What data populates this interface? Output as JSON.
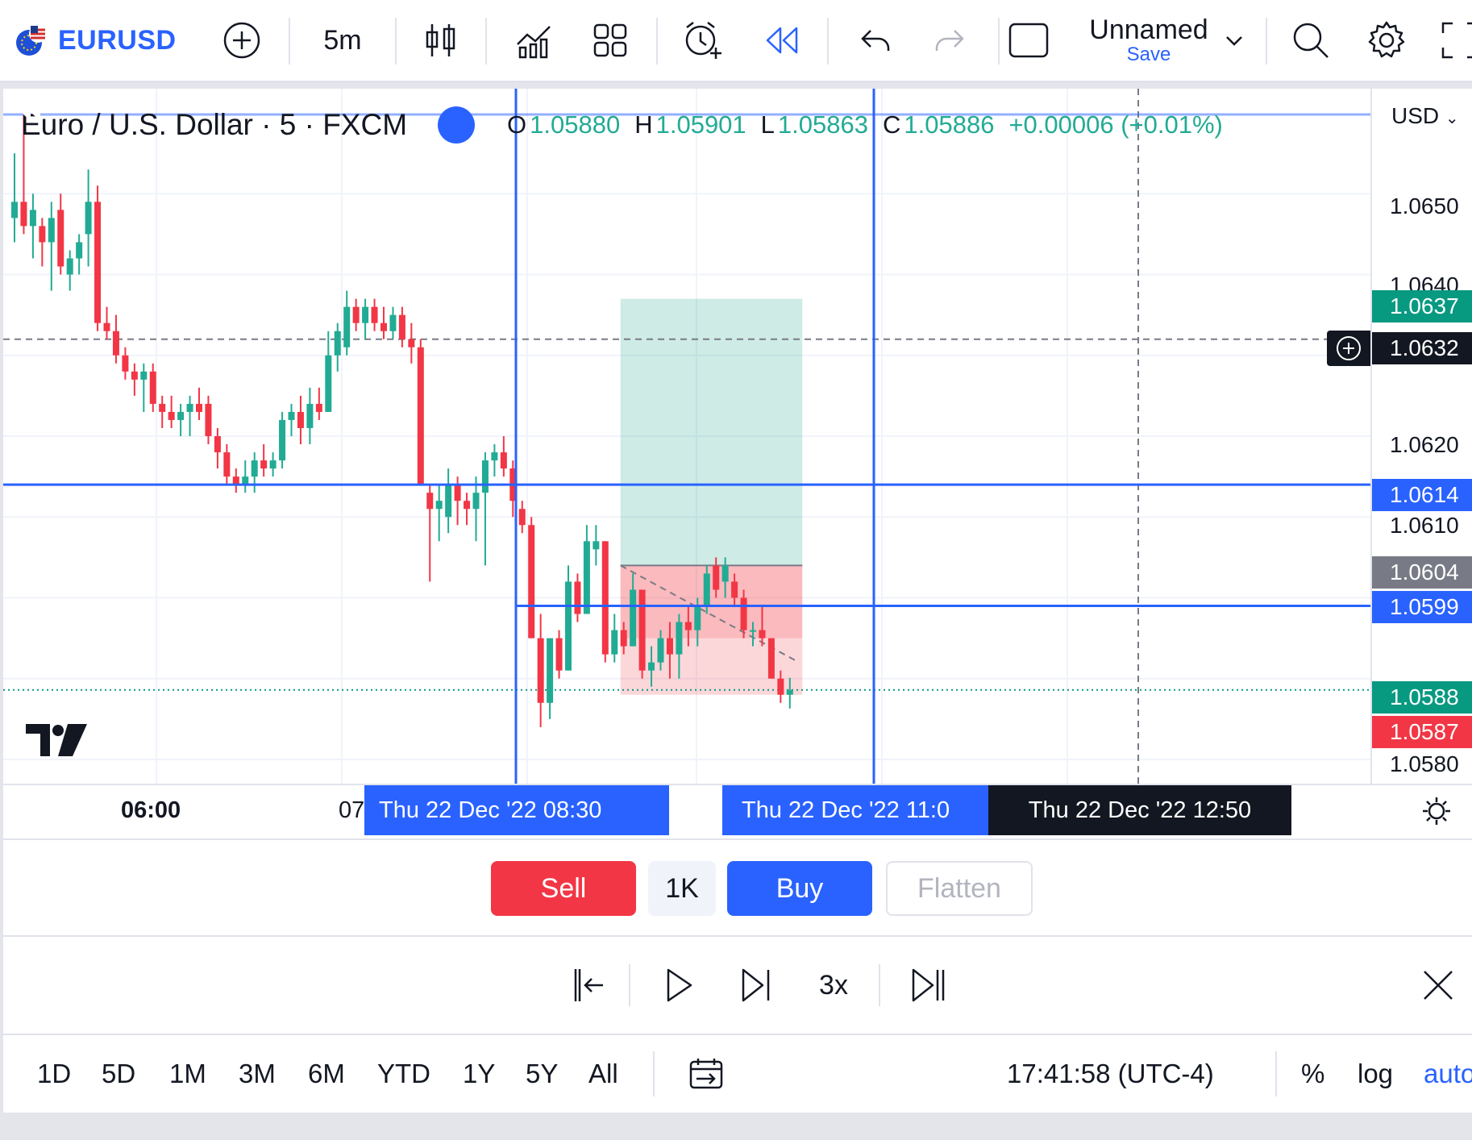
{
  "toolbar": {
    "symbol": "EURUSD",
    "interval": "5m",
    "layout_name": "Unnamed",
    "layout_save": "Save",
    "icons": [
      "plus-circle-icon",
      "candles-icon",
      "indicators-icon",
      "layout-grid-icon",
      "alert-icon",
      "replay-icon",
      "undo-icon",
      "redo-icon",
      "fullscreen-square-icon",
      "search-icon",
      "gear-icon",
      "expand-icon"
    ]
  },
  "legend": {
    "title": "Euro / U.S. Dollar · 5 · FXCM",
    "open_label": "O",
    "open": "1.05880",
    "high_label": "H",
    "high": "1.05901",
    "low_label": "L",
    "low": "1.05863",
    "close_label": "C",
    "close": "1.05886",
    "change": "+0.00006 (+0.01%)"
  },
  "price_axis": {
    "currency": "USD",
    "ticks": [
      "1.0650",
      "1.0640",
      "1.0620",
      "1.0610",
      "1.0580"
    ],
    "labels": {
      "target": "1.0637",
      "crosshair": "1.0632",
      "hline_upper": "1.0614",
      "entry": "1.0604",
      "hline_lower": "1.0599",
      "ask": "1.0588",
      "bid": "1.0587"
    }
  },
  "time_axis": {
    "tick_1": "06:00",
    "tick_2": "07",
    "label_1": "Thu 22 Dec '22   08:30",
    "label_2": "Thu 22 Dec '22   11:0",
    "label_3": "Thu 22 Dec '22   12:50"
  },
  "trade": {
    "sell": "Sell",
    "quantity": "1K",
    "buy": "Buy",
    "flatten": "Flatten"
  },
  "replay": {
    "speed": "3x"
  },
  "bottom": {
    "ranges": [
      "1D",
      "5D",
      "1M",
      "3M",
      "6M",
      "YTD",
      "1Y",
      "5Y",
      "All"
    ],
    "clock": "17:41:58 (UTC-4)",
    "percent": "%",
    "log": "log",
    "auto": "auto"
  },
  "colors": {
    "up": "#22ab94",
    "down": "#f23645",
    "accent": "#2962ff",
    "crosshair_bg": "#131722"
  },
  "chart_data": {
    "type": "candlestick",
    "symbol": "EURUSD",
    "interval_minutes": 5,
    "ylim": [
      1.0577,
      1.0663
    ],
    "candles": [
      {
        "o": 1.0647,
        "h": 1.0655,
        "l": 1.0644,
        "c": 1.0649
      },
      {
        "o": 1.0649,
        "h": 1.066,
        "l": 1.0645,
        "c": 1.0646
      },
      {
        "o": 1.0646,
        "h": 1.065,
        "l": 1.0642,
        "c": 1.0648
      },
      {
        "o": 1.0646,
        "h": 1.0647,
        "l": 1.0641,
        "c": 1.0644
      },
      {
        "o": 1.0644,
        "h": 1.0649,
        "l": 1.0638,
        "c": 1.0647
      },
      {
        "o": 1.0648,
        "h": 1.065,
        "l": 1.064,
        "c": 1.0641
      },
      {
        "o": 1.064,
        "h": 1.0643,
        "l": 1.0638,
        "c": 1.0642
      },
      {
        "o": 1.0642,
        "h": 1.0645,
        "l": 1.064,
        "c": 1.0644
      },
      {
        "o": 1.0645,
        "h": 1.0653,
        "l": 1.0641,
        "c": 1.0649
      },
      {
        "o": 1.0649,
        "h": 1.0651,
        "l": 1.0633,
        "c": 1.0634
      },
      {
        "o": 1.0634,
        "h": 1.0636,
        "l": 1.0632,
        "c": 1.0633
      },
      {
        "o": 1.0633,
        "h": 1.0635,
        "l": 1.0629,
        "c": 1.063
      },
      {
        "o": 1.063,
        "h": 1.0631,
        "l": 1.0627,
        "c": 1.0628
      },
      {
        "o": 1.0628,
        "h": 1.0629,
        "l": 1.0625,
        "c": 1.0627
      },
      {
        "o": 1.0627,
        "h": 1.0629,
        "l": 1.0623,
        "c": 1.0628
      },
      {
        "o": 1.0628,
        "h": 1.0629,
        "l": 1.0623,
        "c": 1.0624
      },
      {
        "o": 1.0624,
        "h": 1.0625,
        "l": 1.0621,
        "c": 1.0623
      },
      {
        "o": 1.0623,
        "h": 1.0625,
        "l": 1.0621,
        "c": 1.0622
      },
      {
        "o": 1.0622,
        "h": 1.0624,
        "l": 1.062,
        "c": 1.0623
      },
      {
        "o": 1.0623,
        "h": 1.0625,
        "l": 1.062,
        "c": 1.0624
      },
      {
        "o": 1.0624,
        "h": 1.0626,
        "l": 1.0622,
        "c": 1.0623
      },
      {
        "o": 1.0624,
        "h": 1.0625,
        "l": 1.0619,
        "c": 1.062
      },
      {
        "o": 1.062,
        "h": 1.0621,
        "l": 1.0616,
        "c": 1.0618
      },
      {
        "o": 1.0618,
        "h": 1.0619,
        "l": 1.0614,
        "c": 1.0615
      },
      {
        "o": 1.0615,
        "h": 1.0616,
        "l": 1.0613,
        "c": 1.0614
      },
      {
        "o": 1.0614,
        "h": 1.0617,
        "l": 1.0613,
        "c": 1.0615
      },
      {
        "o": 1.0615,
        "h": 1.0618,
        "l": 1.0613,
        "c": 1.0617
      },
      {
        "o": 1.0617,
        "h": 1.0619,
        "l": 1.0615,
        "c": 1.0616
      },
      {
        "o": 1.0616,
        "h": 1.0618,
        "l": 1.0615,
        "c": 1.0617
      },
      {
        "o": 1.0617,
        "h": 1.0623,
        "l": 1.0616,
        "c": 1.0622
      },
      {
        "o": 1.0622,
        "h": 1.0624,
        "l": 1.062,
        "c": 1.0623
      },
      {
        "o": 1.0623,
        "h": 1.0625,
        "l": 1.0619,
        "c": 1.0621
      },
      {
        "o": 1.0621,
        "h": 1.0626,
        "l": 1.0619,
        "c": 1.0624
      },
      {
        "o": 1.0624,
        "h": 1.0626,
        "l": 1.0622,
        "c": 1.0623
      },
      {
        "o": 1.0623,
        "h": 1.0633,
        "l": 1.0623,
        "c": 1.063
      },
      {
        "o": 1.063,
        "h": 1.0634,
        "l": 1.0628,
        "c": 1.0633
      },
      {
        "o": 1.0631,
        "h": 1.0638,
        "l": 1.063,
        "c": 1.0636
      },
      {
        "o": 1.0636,
        "h": 1.0637,
        "l": 1.0633,
        "c": 1.0634
      },
      {
        "o": 1.0634,
        "h": 1.0637,
        "l": 1.0632,
        "c": 1.0636
      },
      {
        "o": 1.0636,
        "h": 1.0637,
        "l": 1.0633,
        "c": 1.0634
      },
      {
        "o": 1.0634,
        "h": 1.0636,
        "l": 1.0632,
        "c": 1.0633
      },
      {
        "o": 1.0633,
        "h": 1.0636,
        "l": 1.0632,
        "c": 1.0635
      },
      {
        "o": 1.0635,
        "h": 1.0636,
        "l": 1.0631,
        "c": 1.0632
      },
      {
        "o": 1.0632,
        "h": 1.0634,
        "l": 1.0629,
        "c": 1.0631
      },
      {
        "o": 1.0631,
        "h": 1.0632,
        "l": 1.0614,
        "c": 1.0614
      },
      {
        "o": 1.0613,
        "h": 1.0614,
        "l": 1.0602,
        "c": 1.0611
      },
      {
        "o": 1.0611,
        "h": 1.0614,
        "l": 1.0607,
        "c": 1.0612
      },
      {
        "o": 1.061,
        "h": 1.0616,
        "l": 1.0608,
        "c": 1.0614
      },
      {
        "o": 1.0614,
        "h": 1.0615,
        "l": 1.0609,
        "c": 1.0612
      },
      {
        "o": 1.0612,
        "h": 1.0613,
        "l": 1.0609,
        "c": 1.0611
      },
      {
        "o": 1.0611,
        "h": 1.0615,
        "l": 1.0607,
        "c": 1.0613
      },
      {
        "o": 1.0613,
        "h": 1.0618,
        "l": 1.0604,
        "c": 1.0617
      },
      {
        "o": 1.0617,
        "h": 1.0619,
        "l": 1.0615,
        "c": 1.0618
      },
      {
        "o": 1.0618,
        "h": 1.062,
        "l": 1.0615,
        "c": 1.0616
      },
      {
        "o": 1.0616,
        "h": 1.0617,
        "l": 1.061,
        "c": 1.0612
      },
      {
        "o": 1.0611,
        "h": 1.0612,
        "l": 1.0608,
        "c": 1.0609
      },
      {
        "o": 1.0609,
        "h": 1.061,
        "l": 1.0595,
        "c": 1.0595
      },
      {
        "o": 1.0595,
        "h": 1.0598,
        "l": 1.0584,
        "c": 1.0587
      },
      {
        "o": 1.0587,
        "h": 1.0595,
        "l": 1.0585,
        "c": 1.0595
      },
      {
        "o": 1.0595,
        "h": 1.0596,
        "l": 1.059,
        "c": 1.0591
      },
      {
        "o": 1.0591,
        "h": 1.0604,
        "l": 1.0591,
        "c": 1.0602
      },
      {
        "o": 1.0602,
        "h": 1.0603,
        "l": 1.0597,
        "c": 1.0598
      },
      {
        "o": 1.0598,
        "h": 1.0609,
        "l": 1.0598,
        "c": 1.0607
      },
      {
        "o": 1.0606,
        "h": 1.0609,
        "l": 1.0604,
        "c": 1.0607
      },
      {
        "o": 1.0607,
        "h": 1.0607,
        "l": 1.0592,
        "c": 1.0593
      },
      {
        "o": 1.0593,
        "h": 1.0598,
        "l": 1.0592,
        "c": 1.0596
      },
      {
        "o": 1.0596,
        "h": 1.0597,
        "l": 1.0593,
        "c": 1.0594
      },
      {
        "o": 1.0594,
        "h": 1.0603,
        "l": 1.0594,
        "c": 1.0601
      },
      {
        "o": 1.0601,
        "h": 1.0601,
        "l": 1.059,
        "c": 1.0591
      },
      {
        "o": 1.0591,
        "h": 1.0594,
        "l": 1.0589,
        "c": 1.0592
      },
      {
        "o": 1.0592,
        "h": 1.0596,
        "l": 1.0591,
        "c": 1.0595
      },
      {
        "o": 1.0595,
        "h": 1.0597,
        "l": 1.059,
        "c": 1.0593
      },
      {
        "o": 1.0593,
        "h": 1.0598,
        "l": 1.059,
        "c": 1.0597
      },
      {
        "o": 1.0597,
        "h": 1.0599,
        "l": 1.0594,
        "c": 1.0596
      },
      {
        "o": 1.0596,
        "h": 1.06,
        "l": 1.0594,
        "c": 1.0599
      },
      {
        "o": 1.0599,
        "h": 1.0604,
        "l": 1.0598,
        "c": 1.0603
      },
      {
        "o": 1.0604,
        "h": 1.0605,
        "l": 1.06,
        "c": 1.0601
      },
      {
        "o": 1.0602,
        "h": 1.0605,
        "l": 1.06,
        "c": 1.0604
      },
      {
        "o": 1.0602,
        "h": 1.0603,
        "l": 1.0599,
        "c": 1.06
      },
      {
        "o": 1.06,
        "h": 1.0601,
        "l": 1.0595,
        "c": 1.0596
      },
      {
        "o": 1.0596,
        "h": 1.0597,
        "l": 1.0594,
        "c": 1.0596
      },
      {
        "o": 1.0596,
        "h": 1.0599,
        "l": 1.0594,
        "c": 1.0595
      },
      {
        "o": 1.0595,
        "h": 1.0595,
        "l": 1.059,
        "c": 1.059
      },
      {
        "o": 1.059,
        "h": 1.0591,
        "l": 1.0587,
        "c": 1.0588
      },
      {
        "o": 1.0588,
        "h": 1.05901,
        "l": 1.05863,
        "c": 1.05886
      }
    ],
    "horizontal_lines": [
      1.0614,
      1.0599
    ],
    "position": {
      "side": "long",
      "entry": 1.0604,
      "target": 1.0637,
      "stop": 1.0588
    },
    "crosshair_price": 1.0632,
    "last_price": 1.05886
  }
}
